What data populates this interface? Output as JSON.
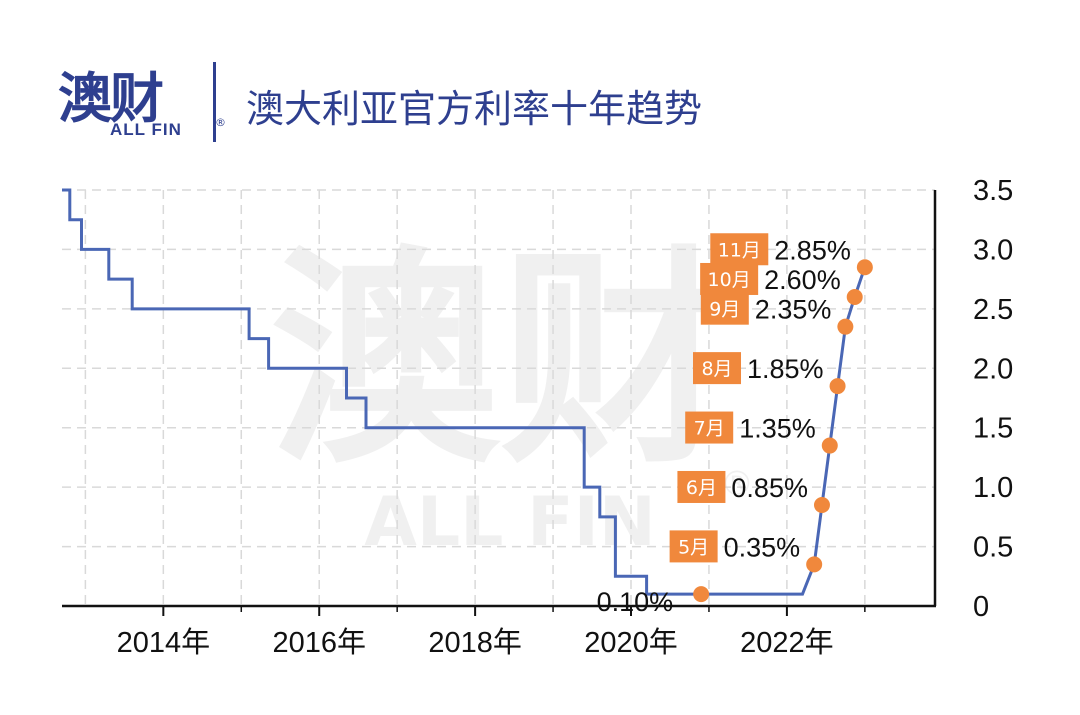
{
  "header": {
    "logo_cn": "澳财",
    "logo_en": "ALL FIN",
    "logo_reg": "®",
    "title": "澳大利亚官方利率十年趋势"
  },
  "watermark": {
    "cn": "澳财",
    "en": "ALL FIN",
    "reg": "®"
  },
  "colors": {
    "line": "#4a67b5",
    "marker": "#f0883c",
    "badge": "#f0883c",
    "brand": "#2e3f8f",
    "grid": "#d9d9d9"
  },
  "chart_data": {
    "type": "line",
    "title": "澳大利亚官方利率十年趋势",
    "xlabel": "",
    "ylabel": "",
    "xlim": [
      2012.7,
      2023.9
    ],
    "ylim": [
      0,
      3.5
    ],
    "x_ticks": [
      2014,
      2016,
      2018,
      2020,
      2022
    ],
    "x_tick_labels": [
      "2014年",
      "2016年",
      "2018年",
      "2020年",
      "2022年"
    ],
    "y_ticks": [
      0,
      0.5,
      1.0,
      1.5,
      2.0,
      2.5,
      3.0,
      3.5
    ],
    "y_tick_labels": [
      "0",
      "0.5",
      "1.0",
      "1.5",
      "2.0",
      "2.5",
      "3.0",
      "3.5"
    ],
    "y_axis_position": "right",
    "grid": true,
    "series": [
      {
        "x": [
          2012.7,
          2012.8,
          2012.8,
          2012.95,
          2012.95,
          2013.3,
          2013.3,
          2013.6,
          2013.6,
          2015.1,
          2015.1,
          2015.35,
          2015.35,
          2016.35,
          2016.35,
          2016.6,
          2016.6,
          2019.4,
          2019.4,
          2019.6,
          2019.6,
          2019.8,
          2019.8,
          2020.2,
          2020.2,
          2020.8,
          2020.8,
          2022.2,
          2022.35,
          2022.45,
          2022.55,
          2022.65,
          2022.75,
          2022.87,
          2023.0
        ],
        "y": [
          3.5,
          3.5,
          3.25,
          3.25,
          3.0,
          3.0,
          2.75,
          2.75,
          2.5,
          2.5,
          2.25,
          2.25,
          2.0,
          2.0,
          1.75,
          1.75,
          1.5,
          1.5,
          1.0,
          1.0,
          0.75,
          0.75,
          0.25,
          0.25,
          0.1,
          0.1,
          0.1,
          0.1,
          0.35,
          0.85,
          1.35,
          1.85,
          2.35,
          2.6,
          2.85
        ]
      }
    ],
    "highlights": [
      {
        "x": 2020.9,
        "y": 0.1,
        "value_label": "0.10%",
        "month_label": ""
      },
      {
        "x": 2022.35,
        "y": 0.35,
        "value_label": "0.35%",
        "month_label": "5月"
      },
      {
        "x": 2022.45,
        "y": 0.85,
        "value_label": "0.85%",
        "month_label": "6月"
      },
      {
        "x": 2022.55,
        "y": 1.35,
        "value_label": "1.35%",
        "month_label": "7月"
      },
      {
        "x": 2022.65,
        "y": 1.85,
        "value_label": "1.85%",
        "month_label": "8月"
      },
      {
        "x": 2022.75,
        "y": 2.35,
        "value_label": "2.35%",
        "month_label": "9月"
      },
      {
        "x": 2022.87,
        "y": 2.6,
        "value_label": "2.60%",
        "month_label": "10月"
      },
      {
        "x": 2023.0,
        "y": 2.85,
        "value_label": "2.85%",
        "month_label": "11月"
      }
    ]
  }
}
